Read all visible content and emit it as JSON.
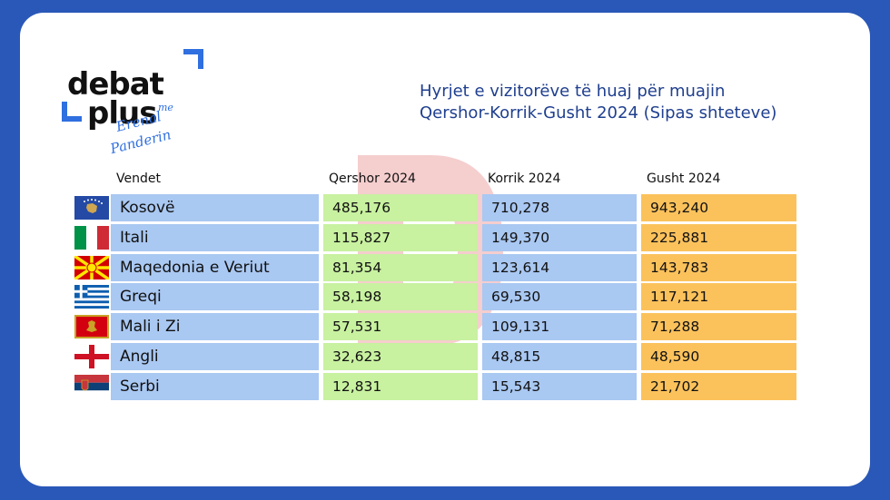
{
  "logo": {
    "line1": "debat",
    "line2": "plus",
    "me": "me",
    "signature_line1": "Erenal",
    "signature_line2": "Panderin"
  },
  "title": {
    "line1": "Hyrjet e vizitorëve të huaj për muajin",
    "line2": "Qershor-Korrik-Gusht 2024 (Sipas shteteve)"
  },
  "colors": {
    "background": "#2a58b8",
    "name_cell": "#a9c8f2",
    "june_cell": "#c8f1a0",
    "july_cell": "#a9c8f2",
    "august_cell": "#fbc25c",
    "title": "#1f3f8f"
  },
  "chart_data": {
    "type": "table",
    "title": "Hyrjet e vizitorëve të huaj për muajin Qershor-Korrik-Gusht 2024 (Sipas shteteve)",
    "columns": [
      "Vendet",
      "Qershor 2024",
      "Korrik 2024",
      "Gusht 2024"
    ],
    "rows": [
      {
        "country": "Kosovë",
        "flag": "kosovo-flag",
        "jun": "485,176",
        "jul": "710,278",
        "aug": "943,240"
      },
      {
        "country": "Itali",
        "flag": "italy-flag",
        "jun": "115,827",
        "jul": "149,370",
        "aug": "225,881"
      },
      {
        "country": "Maqedonia e Veriut",
        "flag": "north-macedonia-flag",
        "jun": "81,354",
        "jul": "123,614",
        "aug": "143,783"
      },
      {
        "country": "Greqi",
        "flag": "greece-flag",
        "jun": "58,198",
        "jul": "69,530",
        "aug": "117,121"
      },
      {
        "country": "Mali i Zi",
        "flag": "montenegro-flag",
        "jun": "57,531",
        "jul": "109,131",
        "aug": "71,288"
      },
      {
        "country": "Angli",
        "flag": "england-flag",
        "jun": "32,623",
        "jul": "48,815",
        "aug": "48,590"
      },
      {
        "country": "Serbi",
        "flag": "serbia-flag",
        "jun": "12,831",
        "jul": "15,543",
        "aug": "21,702"
      }
    ]
  }
}
